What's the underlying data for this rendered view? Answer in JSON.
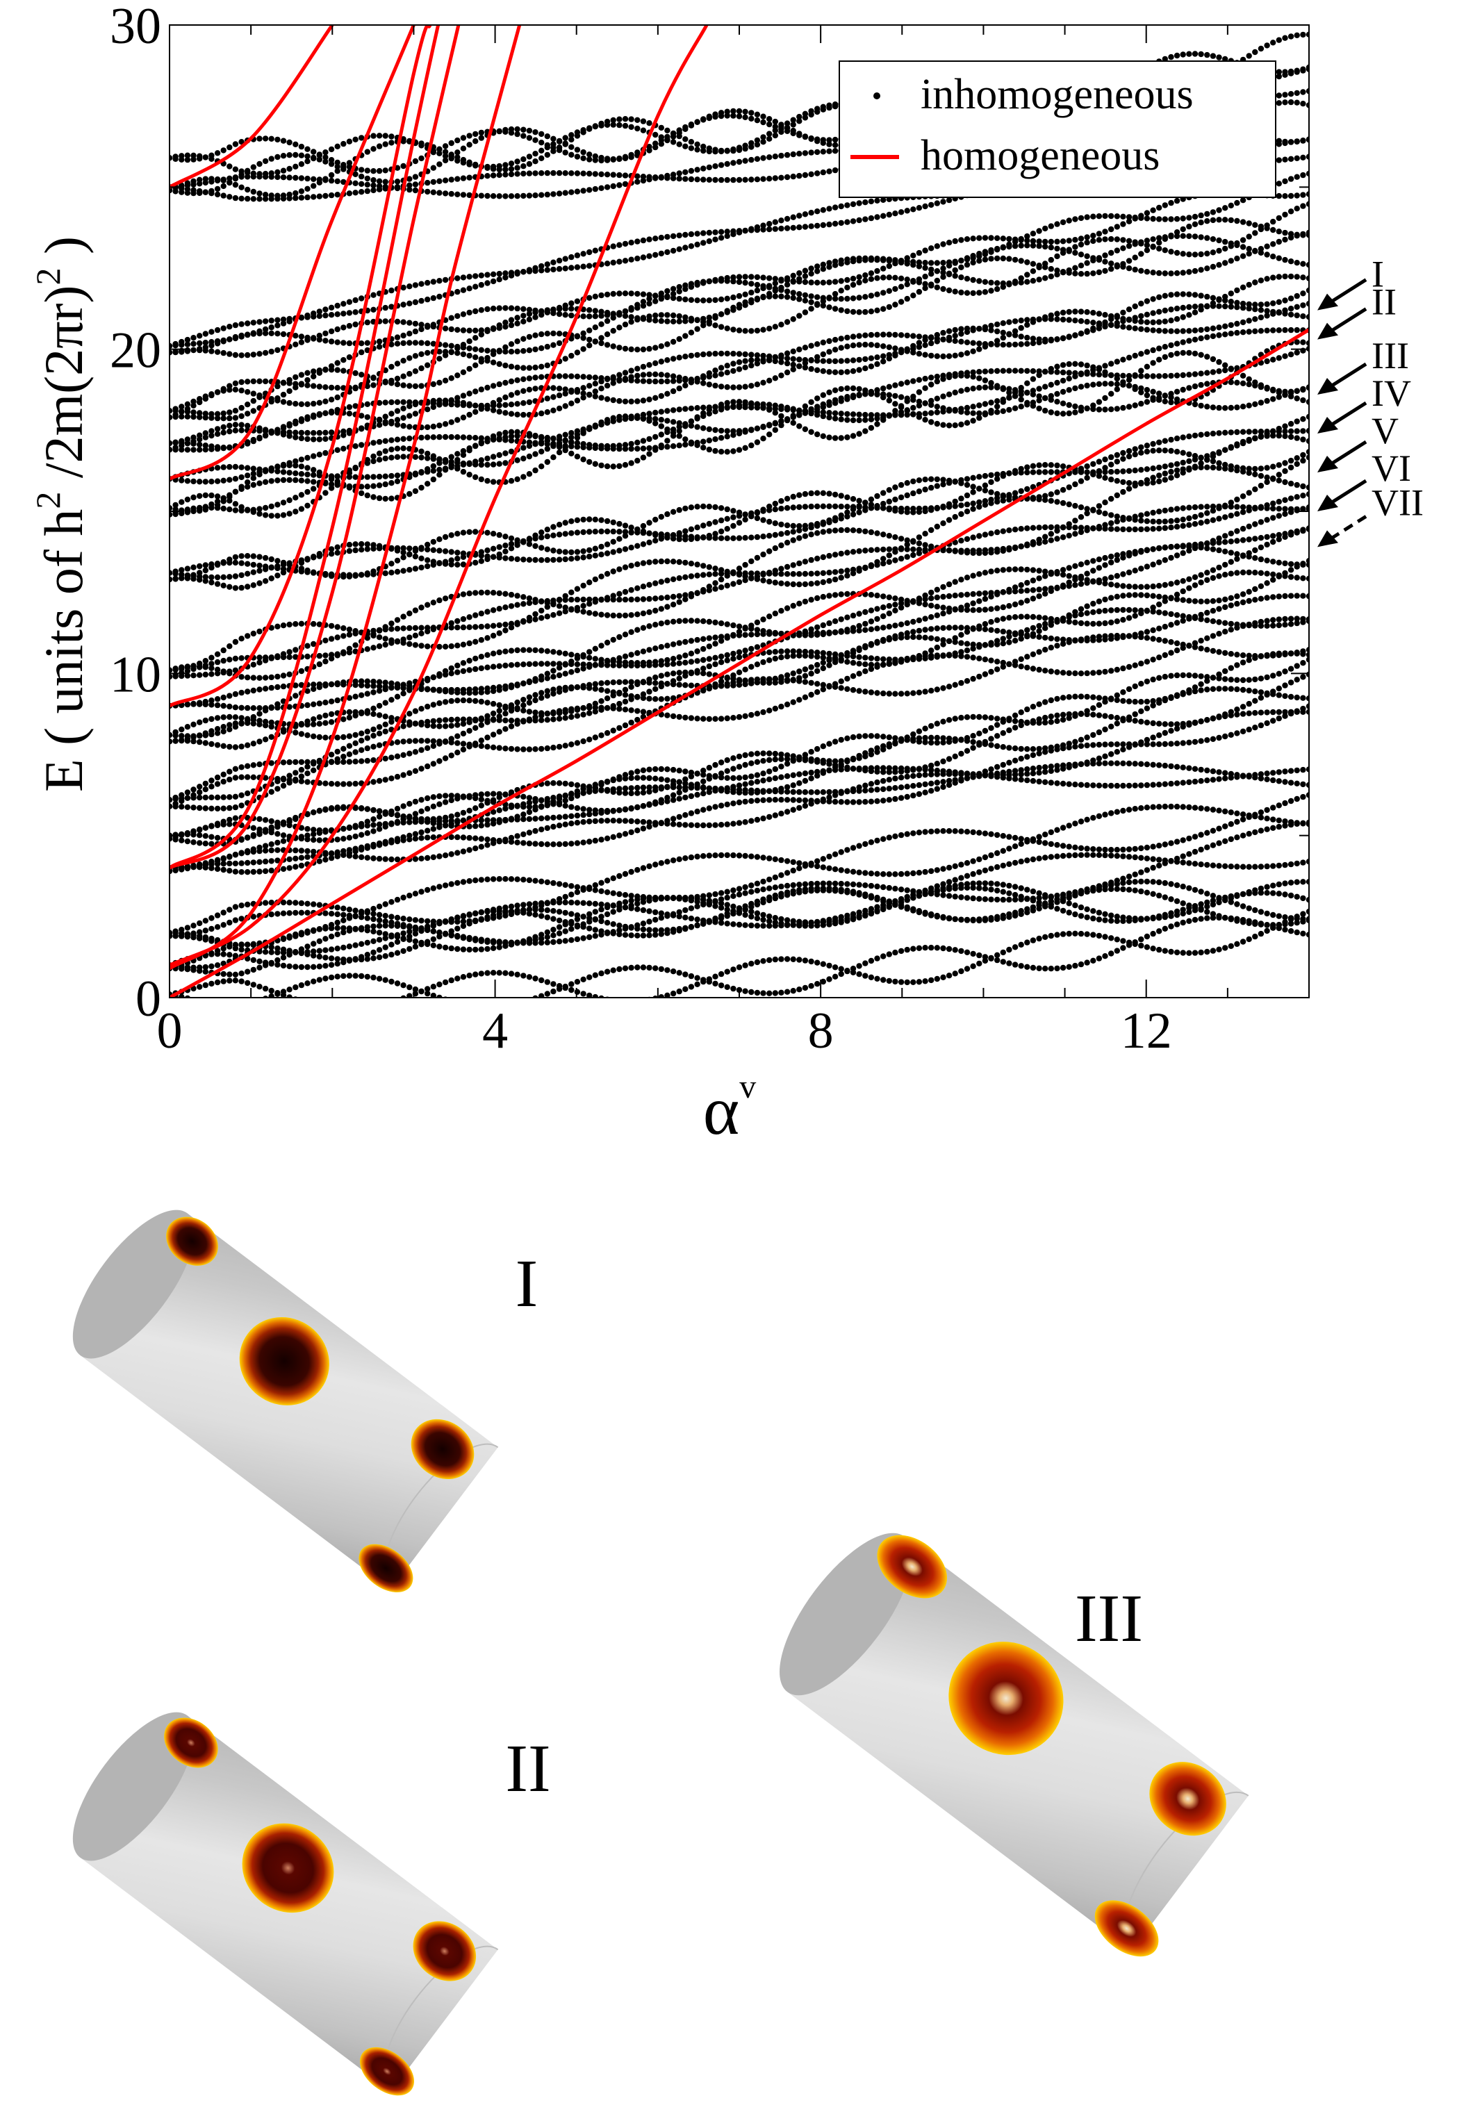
{
  "chart_data": {
    "type": "scatter",
    "xlabel": "α",
    "xlabel_sup": "v",
    "ylabel_parts": [
      "E ( units of h",
      "2",
      " /2m(2πr)",
      "2",
      " )"
    ],
    "xlim": [
      0,
      14
    ],
    "ylim": [
      0,
      30
    ],
    "x_ticks": [
      0,
      4,
      8,
      12
    ],
    "y_ticks": [
      0,
      10,
      20,
      30
    ],
    "legend_position": "top-right",
    "legend": [
      {
        "label": "inhomogeneous",
        "marker": "dot",
        "color": "#000000"
      },
      {
        "label": "homogeneous",
        "marker": "line",
        "color": "#ff0000"
      }
    ],
    "series": [
      {
        "name": "homogeneous",
        "kind": "curves",
        "color": "#ff0000",
        "curves": [
          {
            "n": 0,
            "E0": 0,
            "x": [
              0,
              1,
              2,
              3,
              4,
              5,
              6,
              7,
              8,
              9,
              10,
              11,
              12,
              13,
              14
            ],
            "y": [
              0.0,
              1.4,
              2.9,
              4.4,
              5.9,
              7.3,
              8.8,
              10.3,
              11.8,
              13.2,
              14.7,
              16.2,
              17.7,
              19.1,
              20.6
            ]
          },
          {
            "n": 1,
            "E0": 1,
            "x": [
              0,
              1,
              2,
              3,
              4,
              5,
              6,
              6.6
            ],
            "y": [
              1.0,
              2.2,
              5.0,
              9.4,
              15.4,
              21.0,
              27.2,
              30.0
            ]
          },
          {
            "n": 1,
            "E0": 1,
            "x": [
              0,
              1,
              2,
              3,
              3.5,
              4.3
            ],
            "y": [
              0.9,
              2.6,
              8.0,
              17.0,
              22.5,
              30.0
            ]
          },
          {
            "n": 2,
            "E0": 4,
            "x": [
              0,
              1,
              2,
              3,
              3.55
            ],
            "y": [
              4.0,
              5.5,
              12.5,
              24.0,
              30.0
            ]
          },
          {
            "n": 2,
            "E0": 4,
            "x": [
              0,
              1,
              2,
              3,
              3.3
            ],
            "y": [
              4.0,
              6.0,
              14.5,
              26.5,
              30.0
            ]
          },
          {
            "n": 3,
            "E0": 9,
            "x": [
              0,
              1,
              2,
              3,
              3.2
            ],
            "y": [
              9.0,
              10.5,
              17.0,
              28.5,
              30.0
            ]
          },
          {
            "n": 4,
            "E0": 16,
            "x": [
              0,
              1,
              2,
              3
            ],
            "y": [
              16.0,
              17.5,
              24.0,
              30.0
            ]
          },
          {
            "n": 5,
            "E0": 25,
            "x": [
              0,
              1,
              2
            ],
            "y": [
              25.0,
              26.5,
              30.0
            ]
          }
        ]
      },
      {
        "name": "inhomogeneous",
        "kind": "scatter",
        "color": "#000000",
        "levels_at_zero": [
          0.1,
          0.9,
          1.0,
          1.9,
          2.0,
          3.9,
          4.0,
          4.9,
          5.0,
          5.9,
          6.1,
          7.9,
          8.1,
          9.0,
          9.9,
          10.1,
          12.9,
          13.1,
          14.9,
          15.1,
          16.0,
          16.9,
          17.1,
          17.9,
          18.1,
          19.9,
          20.1,
          24.9,
          25.0,
          25.9,
          26.1,
          28.9,
          29.1
        ],
        "levels_at_14": [
          2.3,
          2.7,
          3.0,
          4.8,
          5.8,
          6.8,
          8.9,
          9.6,
          10.5,
          11.2,
          12.0,
          13.2,
          13.9,
          14.8,
          15.3,
          16.2,
          17.0,
          17.7,
          18.6,
          19.5,
          20.3,
          21.2,
          22.0,
          23.1,
          24.0,
          25.1,
          26.2,
          27.0,
          28.3,
          29.2
        ]
      }
    ],
    "arrows": [
      {
        "label": "I",
        "target_y": 21.2,
        "style": "solid"
      },
      {
        "label": "II",
        "target_y": 20.3,
        "style": "solid"
      },
      {
        "label": "III",
        "target_y": 18.6,
        "style": "solid"
      },
      {
        "label": "IV",
        "target_y": 17.4,
        "style": "solid"
      },
      {
        "label": "V",
        "target_y": 16.2,
        "style": "solid"
      },
      {
        "label": "VI",
        "target_y": 15.0,
        "style": "solid"
      },
      {
        "label": "VII",
        "target_y": 13.9,
        "style": "dashed"
      }
    ]
  },
  "panels": [
    {
      "label": "I",
      "colors": {
        "body": "#d8d8d8",
        "spot_core": "#1a0000",
        "spot_mid": "#8a1a00",
        "spot_edge": "#ffd000"
      }
    },
    {
      "label": "II",
      "colors": {
        "body": "#d8d8d8",
        "spot_core": "#2a0000",
        "spot_mid": "#9a2200",
        "spot_edge": "#ffd000"
      }
    },
    {
      "label": "III",
      "colors": {
        "body": "#d8d8d8",
        "spot_core": "#ffe9c0",
        "spot_mid": "#b81e00",
        "spot_edge": "#ffd000"
      }
    }
  ]
}
